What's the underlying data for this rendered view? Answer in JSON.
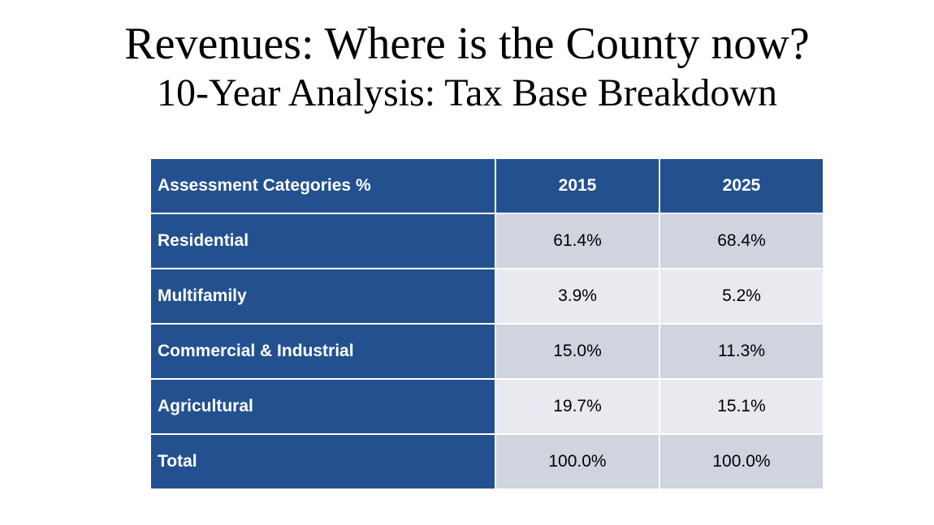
{
  "slide": {
    "title_line1": "Revenues: Where is the County now?",
    "title_line2": "10-Year Analysis: Tax Base Breakdown"
  },
  "table": {
    "headers": [
      "Assessment Categories %",
      "2015",
      "2025"
    ],
    "rows": [
      {
        "category": "Residential",
        "y2015": "61.4%",
        "y2025": "68.4%"
      },
      {
        "category": "Multifamily",
        "y2015": "3.9%",
        "y2025": "5.2%"
      },
      {
        "category": "Commercial & Industrial",
        "y2015": "15.0%",
        "y2025": "11.3%"
      },
      {
        "category": "Agricultural",
        "y2015": "19.7%",
        "y2025": "15.1%"
      },
      {
        "category": "Total",
        "y2015": "100.0%",
        "y2025": "100.0%"
      }
    ]
  },
  "colors": {
    "header_blue": "#23518f",
    "cell_dark": "#cfd4df",
    "cell_light": "#e8eaf0"
  }
}
